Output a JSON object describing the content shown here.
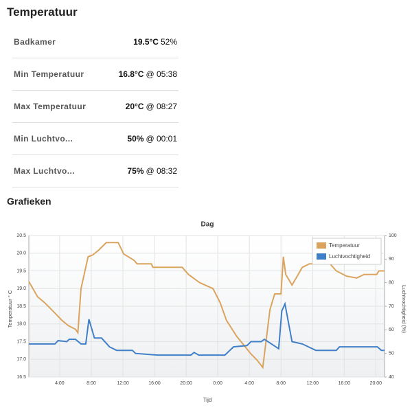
{
  "header": {
    "title": "Temperatuur"
  },
  "table": {
    "rows": [
      {
        "label": "Badkamer",
        "value": "19.5°C",
        "extra": "52%"
      },
      {
        "label": "Min Temperatuur",
        "value": "16.8°C",
        "extra": "@ 05:38"
      },
      {
        "label": "Max Temperatuur",
        "value": "20°C",
        "extra": "@ 08:27"
      },
      {
        "label": "Min Luchtvo...",
        "value": "50%",
        "extra": "@ 00:01"
      },
      {
        "label": "Max Luchtvo...",
        "value": "75%",
        "extra": "@ 08:32"
      }
    ]
  },
  "section": {
    "title": "Grafieken"
  },
  "chart_data": {
    "type": "line",
    "title": "Dag",
    "x_label": "Tijd",
    "y_label": "Temperatuur ° C",
    "y2_label": "Luchtvochtigheid (%)",
    "xlim": [
      0.1,
      45.1
    ],
    "xticks": [
      {
        "value": 4,
        "label": "4:00"
      },
      {
        "value": 8,
        "label": "8:00"
      },
      {
        "value": 12,
        "label": "12:00"
      },
      {
        "value": 16,
        "label": "16:00"
      },
      {
        "value": 20,
        "label": "20:00"
      },
      {
        "value": 24,
        "label": "0:00"
      },
      {
        "value": 28,
        "label": "4:00"
      },
      {
        "value": 32,
        "label": "8:00"
      },
      {
        "value": 36,
        "label": "12:00"
      },
      {
        "value": 40,
        "label": "16:00"
      },
      {
        "value": 44,
        "label": "20:00"
      }
    ],
    "ylim": [
      16.5,
      20.5
    ],
    "yticks": [
      16.5,
      {
        "value": 17,
        "label": "17.0"
      },
      17.5,
      {
        "value": 18,
        "label": "18.0"
      },
      18.5,
      {
        "value": 19,
        "label": "19.0"
      },
      19.5,
      {
        "value": 20,
        "label": "20.0"
      },
      20.5
    ],
    "y2lim": [
      40,
      100
    ],
    "y2ticks": [
      40,
      50,
      60,
      70,
      80,
      90,
      100
    ],
    "grid": true,
    "legend": "top-right",
    "series": [
      {
        "name": "Temperatuur",
        "color": "#dba45e",
        "x": [
          0.1,
          1.2,
          2.1,
          3,
          4.3,
          5.1,
          6,
          6.3,
          6.7,
          7.6,
          8.2,
          9,
          9.9,
          11.4,
          12.1,
          13.4,
          13.8,
          15.6,
          15.8,
          19.5,
          20.3,
          21.7,
          23.4,
          24.3,
          25.1,
          26.4,
          28.2,
          29,
          29.7,
          30.6,
          31.2,
          32,
          32.3,
          32.6,
          33.4,
          34.7,
          35.6,
          38.2,
          39,
          40.3,
          41.6,
          42.5,
          44.1,
          44.4,
          45.1
        ],
        "values": [
          19.2,
          18.77,
          18.6,
          18.4,
          18.1,
          17.95,
          17.85,
          17.75,
          19,
          19.9,
          19.95,
          20.1,
          20.3,
          20.3,
          19.98,
          19.8,
          19.7,
          19.7,
          19.6,
          19.6,
          19.4,
          19.17,
          19,
          18.6,
          18.1,
          17.65,
          17.15,
          16.97,
          16.77,
          18.4,
          18.85,
          18.85,
          19.9,
          19.4,
          19.1,
          19.6,
          19.7,
          19.7,
          19.5,
          19.35,
          19.3,
          19.4,
          19.4,
          19.5,
          19.5
        ]
      },
      {
        "name": "Luchtvochtigheid",
        "color": "#3f7fc8",
        "axis": "y2",
        "x": [
          0.1,
          3.4,
          3.8,
          4.9,
          5.2,
          6,
          6.7,
          7.3,
          7.7,
          8.4,
          9.3,
          10.3,
          11.2,
          13.2,
          13.6,
          16.4,
          20.6,
          21,
          21.6,
          24.9,
          26,
          27.7,
          28.2,
          29.5,
          29.9,
          30.8,
          31.7,
          32.1,
          32.5,
          33.4,
          34.7,
          36.4,
          39,
          39.4,
          44.2,
          44.7,
          45.1
        ],
        "values": [
          54,
          54,
          55.4,
          55,
          56,
          56,
          54,
          54,
          64.5,
          56.5,
          56.5,
          52.8,
          51.3,
          51.3,
          50,
          49.3,
          49.3,
          50.4,
          49.3,
          49.3,
          52.8,
          53.3,
          55,
          55,
          56,
          54,
          52,
          68,
          71,
          55,
          54,
          51.3,
          51.3,
          52.8,
          52.8,
          51.3,
          51.3
        ]
      }
    ]
  }
}
